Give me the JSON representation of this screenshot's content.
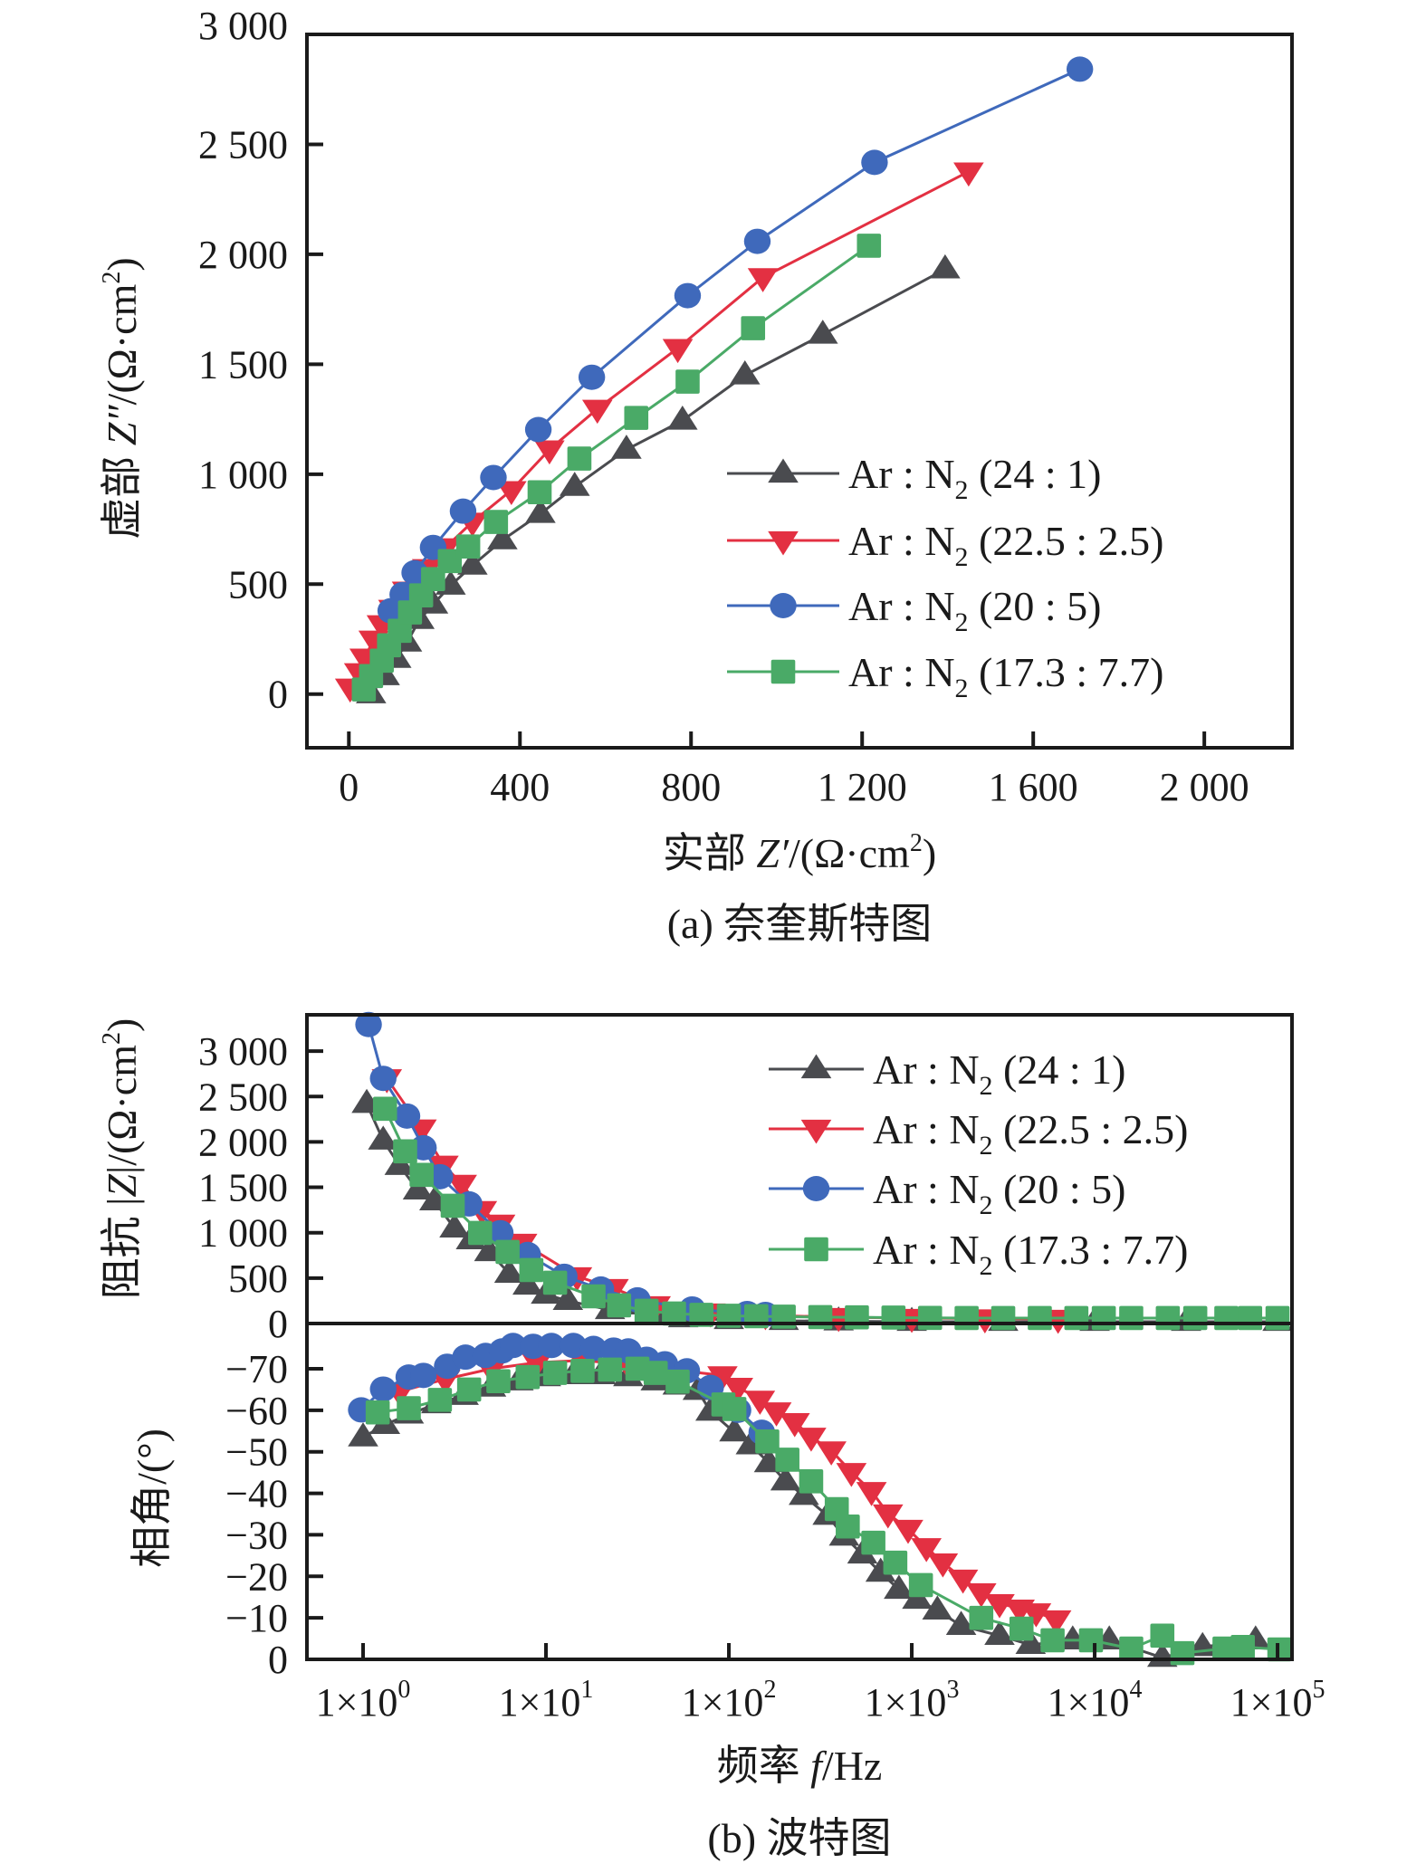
{
  "figure": {
    "panel_a_caption": "(a) 奈奎斯特图",
    "panel_b_caption": "(b) 波特图"
  },
  "chart_data": [
    {
      "id": "nyquist",
      "type": "scatter",
      "title": "(a) 奈奎斯特图",
      "xlabel": "实部 Z′/(Ω·cm²)",
      "xlabel_parts": {
        "prefix": "实部 ",
        "var": "Z′",
        "suffix": "/(Ω·cm",
        "sup": "2",
        "end": ")"
      },
      "ylabel": "虚部 Z″/(Ω·cm²)",
      "ylabel_parts": {
        "prefix": "虚部 ",
        "var": "Z″",
        "suffix": "/(Ω·cm",
        "sup": "2",
        "end": ")"
      },
      "xlim": [
        -98,
        2205
      ],
      "ylim": [
        -244,
        3000
      ],
      "xticks": [
        0,
        400,
        800,
        1200,
        1600,
        2000
      ],
      "xtick_labels": [
        "0",
        "400",
        "800",
        "1 200",
        "1 600",
        "2 000"
      ],
      "yticks": [
        0,
        500,
        1000,
        1500,
        2000,
        2500,
        3000
      ],
      "ytick_labels": [
        "0",
        "500",
        "1 000",
        "1 500",
        "2 000",
        "2 500",
        "3 000"
      ],
      "grid": false,
      "legend_position": "lower-right",
      "series": [
        {
          "name": "Ar : N2 (24 : 1)",
          "label_main": "Ar : N",
          "label_sub": "2",
          "label_tail": " (24 : 1)",
          "color": "#4a4b4f",
          "marker": "triangle-up",
          "x": [
            52,
            84,
            111,
            136,
            165,
            197,
            238,
            289,
            359,
            448,
            528,
            649,
            780,
            926,
            1108,
            1394
          ],
          "y": [
            0,
            82,
            161,
            235,
            338,
            408,
            494,
            585,
            700,
            820,
            943,
            1112,
            1244,
            1450,
            1635,
            1932
          ]
        },
        {
          "name": "Ar : N2 (22.5 : 2.5)",
          "label_main": "Ar : N",
          "label_sub": "2",
          "label_tail": " (22.5 : 2.5)",
          "color": "#e33042",
          "marker": "triangle-down",
          "x": [
            3,
            24,
            37,
            58,
            77,
            104,
            136,
            183,
            226,
            289,
            380,
            469,
            581,
            769,
            968,
            1449
          ],
          "y": [
            29,
            99,
            165,
            247,
            317,
            387,
            470,
            572,
            667,
            783,
            927,
            1112,
            1297,
            1573,
            1895,
            2376
          ]
        },
        {
          "name": "Ar : N2 (20 : 5)",
          "label_main": "Ar : N",
          "label_sub": "2",
          "label_tail": " (20 : 5)",
          "color": "#3f69bb",
          "marker": "circle",
          "x": [
            98,
            126,
            154,
            197,
            267,
            338,
            443,
            568,
            792,
            955,
            1229,
            1709
          ],
          "y": [
            379,
            453,
            552,
            667,
            832,
            985,
            1203,
            1441,
            1812,
            2059,
            2418,
            2842
          ]
        },
        {
          "name": "Ar : N2 (17.3 : 7.7)",
          "label_main": "Ar : N",
          "label_sub": "2",
          "label_tail": " (17.3 : 7.7)",
          "color": "#4aaa67",
          "marker": "square",
          "x": [
            35,
            52,
            77,
            94,
            119,
            143,
            169,
            197,
            236,
            279,
            344,
            446,
            539,
            672,
            792,
            945,
            1216
          ],
          "y": [
            21,
            82,
            152,
            222,
            288,
            371,
            449,
            523,
            605,
            671,
            783,
            918,
            1071,
            1256,
            1421,
            1664,
            2039
          ]
        }
      ]
    },
    {
      "id": "bode-magnitude",
      "type": "scatter",
      "title": "(b) 波特图",
      "xlabel": "频率 f/Hz",
      "xlabel_parts": {
        "prefix": "频率 ",
        "var": "f",
        "suffix": "/Hz"
      },
      "ylabel": "阻抗 |Z|/(Ω·cm²)",
      "ylabel_parts": {
        "prefix": "阻抗 |",
        "var": "Z",
        "suffix": "|/(Ω·cm",
        "sup": "2",
        "end": ")"
      },
      "xscale": "log",
      "xlim_log10": [
        -0.307,
        5.079
      ],
      "ylim": [
        0,
        3400
      ],
      "xtick_log10": [
        0,
        1,
        2,
        3,
        4,
        5
      ],
      "xtick_labels": [
        {
          "base": "1×10",
          "exp": "0"
        },
        {
          "base": "1×10",
          "exp": "1"
        },
        {
          "base": "1×10",
          "exp": "2"
        },
        {
          "base": "1×10",
          "exp": "3"
        },
        {
          "base": "1×10",
          "exp": "4"
        },
        {
          "base": "1×10",
          "exp": "5"
        }
      ],
      "yticks": [
        0,
        500,
        1000,
        1500,
        2000,
        2500,
        3000
      ],
      "ytick_labels": [
        "0",
        "500",
        "1 000",
        "1 500",
        "2 000",
        "2 500",
        "3 000"
      ],
      "grid": false,
      "legend_position": "top-right",
      "series": [
        {
          "name": "Ar : N2 (24 : 1)",
          "color": "#4a4b4f",
          "marker": "triangle-up",
          "log10_f": [
            0.02,
            0.11,
            0.2,
            0.3,
            0.39,
            0.5,
            0.59,
            0.69,
            0.8,
            0.9,
            1.0,
            1.12,
            1.35,
            1.5,
            1.6,
            1.75,
            2.0,
            2.3,
            2.6,
            3.0,
            3.5,
            4.0,
            4.5,
            5.0
          ],
          "Z": [
            2420,
            2016,
            1737,
            1467,
            1347,
            1048,
            918,
            788,
            549,
            419,
            319,
            250,
            150,
            200,
            90,
            60,
            40,
            30,
            25,
            20,
            20,
            20,
            20,
            20
          ]
        },
        {
          "name": "Ar : N2 (22.5 : 2.5)",
          "color": "#e33042",
          "marker": "triangle-down",
          "log10_f": [
            0.13,
            0.32,
            0.44,
            0.54,
            0.65,
            0.75,
            0.87,
            1.17,
            1.37,
            1.6,
            1.9,
            2.2,
            2.6,
            3.0,
            3.4,
            3.8
          ],
          "Z": [
            2700,
            2146,
            1747,
            1537,
            1248,
            1098,
            888,
            519,
            389,
            200,
            120,
            90,
            70,
            60,
            55,
            50
          ]
        },
        {
          "name": "Ar : N2 (20 : 5)",
          "color": "#3f69bb",
          "marker": "circle",
          "log10_f": [
            0.03,
            0.11,
            0.24,
            0.33,
            0.42,
            0.58,
            0.75,
            0.9,
            1.1,
            1.3,
            1.5,
            1.8,
            2.1,
            2.2
          ],
          "Z": [
            3293,
            2700,
            2285,
            1936,
            1617,
            1317,
            1000,
            760,
            520,
            380,
            260,
            160,
            110,
            100
          ]
        },
        {
          "name": "Ar : N2 (17.3 : 7.7)",
          "color": "#4aaa67",
          "marker": "square",
          "log10_f": [
            0.12,
            0.23,
            0.32,
            0.49,
            0.64,
            0.79,
            0.92,
            1.05,
            1.26,
            1.4,
            1.55,
            1.7,
            1.85,
            2.0,
            2.15,
            2.3,
            2.5,
            2.7,
            2.9,
            3.1,
            3.3,
            3.5,
            3.7,
            3.9,
            4.05,
            4.2,
            4.4,
            4.55,
            4.72,
            4.85,
            5.0
          ],
          "Z": [
            2365,
            1896,
            1637,
            1297,
            998,
            788,
            589,
            449,
            299,
            200,
            140,
            110,
            95,
            85,
            80,
            75,
            70,
            68,
            65,
            62,
            60,
            60,
            60,
            60,
            60,
            60,
            60,
            60,
            60,
            60,
            60
          ]
        }
      ]
    },
    {
      "id": "bode-phase",
      "type": "scatter",
      "xlabel": "频率 f/Hz",
      "ylabel": "相角/(°)",
      "ylabel_parts": {
        "prefix": "相角/(°)"
      },
      "xscale": "log",
      "xlim_log10": [
        -0.307,
        5.079
      ],
      "ylim": [
        0,
        -80.9
      ],
      "yticks": [
        0,
        -10,
        -20,
        -30,
        -40,
        -50,
        -60,
        -70
      ],
      "ytick_labels": [
        "0",
        "−10",
        "−20",
        "−30",
        "−40",
        "−50",
        "−60",
        "−70"
      ],
      "grid": false,
      "series": [
        {
          "name": "Ar : N2 (24 : 1)",
          "color": "#4a4b4f",
          "marker": "triangle-up",
          "log10_f": [
            0.0,
            0.12,
            0.25,
            0.4,
            0.55,
            0.7,
            0.85,
            1.0,
            1.15,
            1.3,
            1.45,
            1.6,
            1.72,
            1.83,
            1.9,
            2.03,
            2.12,
            2.22,
            2.31,
            2.41,
            2.54,
            2.63,
            2.73,
            2.83,
            2.93,
            3.03,
            3.14,
            3.27,
            3.48,
            3.65,
            3.88,
            4.08,
            4.37,
            4.59,
            4.88
          ],
          "phase": [
            -53.5,
            -56.5,
            -59,
            -61.5,
            -63.5,
            -65.5,
            -67,
            -68,
            -68.5,
            -68.5,
            -68,
            -67,
            -66,
            -64.7,
            -59.7,
            -54.7,
            -51.6,
            -47.3,
            -42.9,
            -39.4,
            -34.6,
            -29.6,
            -25.3,
            -20.9,
            -16.8,
            -14.4,
            -11.8,
            -8.1,
            -5.7,
            -3.5,
            -4.6,
            -4.6,
            -0.4,
            -3.0,
            -4.6
          ]
        },
        {
          "name": "Ar : N2 (22.5 : 2.5)",
          "color": "#e33042",
          "marker": "triangle-down",
          "log10_f": [
            0.2,
            0.45,
            0.7,
            0.95,
            1.2,
            1.45,
            1.965,
            2.05,
            2.17,
            2.26,
            2.36,
            2.45,
            2.56,
            2.67,
            2.78,
            2.87,
            2.98,
            3.08,
            3.17,
            3.28,
            3.38,
            3.48,
            3.59,
            3.68,
            3.79
          ],
          "phase": [
            -64.5,
            -67.5,
            -70,
            -71.5,
            -72,
            -71,
            -68.4,
            -65.6,
            -62.5,
            -59.7,
            -57.1,
            -53.6,
            -50.3,
            -45.1,
            -40.5,
            -35.1,
            -31.4,
            -27,
            -23.3,
            -19.4,
            -16.1,
            -13.5,
            -12.2,
            -11.3,
            -9.6
          ]
        },
        {
          "name": "Ar : N2 (20 : 5)",
          "color": "#3f69bb",
          "marker": "circle",
          "log10_f": [
            -0.01,
            0.11,
            0.25,
            0.33,
            0.46,
            0.56,
            0.67,
            0.76,
            0.82,
            0.93,
            1.03,
            1.15,
            1.26,
            1.37,
            1.45,
            1.55,
            1.65,
            1.77,
            1.9,
            2.05,
            2.18
          ],
          "phase": [
            -60.1,
            -65.1,
            -68,
            -68.4,
            -70.6,
            -72.8,
            -73.2,
            -74.3,
            -75.6,
            -75.4,
            -75.6,
            -75.6,
            -74.9,
            -74.5,
            -74.3,
            -72.3,
            -71.2,
            -69.5,
            -65.5,
            -60,
            -54.7
          ]
        },
        {
          "name": "Ar : N2 (17.3 : 7.7)",
          "color": "#4aaa67",
          "marker": "square",
          "log10_f": [
            0.08,
            0.25,
            0.42,
            0.58,
            0.74,
            0.9,
            1.05,
            1.2,
            1.35,
            1.5,
            1.6,
            1.72,
            1.97,
            2.03,
            2.21,
            2.32,
            2.45,
            2.59,
            2.65,
            2.79,
            2.91,
            3.05,
            3.38,
            3.6,
            3.77,
            3.98,
            4.2,
            4.37,
            4.48,
            4.71,
            4.81,
            5.01
          ],
          "phase": [
            -59.5,
            -60.5,
            -62.5,
            -65,
            -67,
            -68,
            -69,
            -69.5,
            -69.8,
            -70,
            -69,
            -66.9,
            -61.4,
            -60.3,
            -52.5,
            -48.1,
            -42.9,
            -36.2,
            -32,
            -28.1,
            -23.3,
            -17.9,
            -10,
            -7.4,
            -4.6,
            -4.6,
            -2.6,
            -5.7,
            -1.5,
            -2.6,
            -3.0,
            -2.4
          ]
        }
      ]
    }
  ]
}
